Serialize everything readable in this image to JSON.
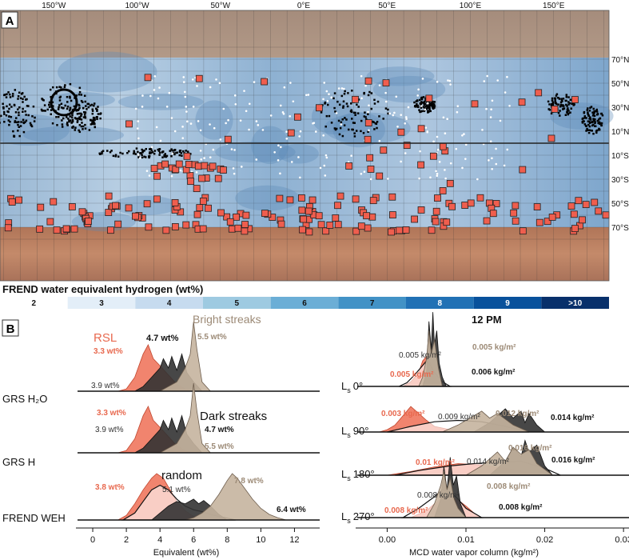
{
  "panel_a": {
    "label": "A",
    "lon_ticks": [
      "150°W",
      "100°W",
      "50°W",
      "0°E",
      "50°E",
      "100°E",
      "150°E"
    ],
    "lat_ticks": [
      "70°N",
      "50°N",
      "30°N",
      "10°N",
      "10°S",
      "30°S",
      "50°S",
      "70°S"
    ],
    "legend": {
      "title": "FREND water equivalent hydrogen (wt%)",
      "classes": [
        "2",
        "3",
        "4",
        "5",
        "6",
        "7",
        "8",
        "9",
        ">10"
      ],
      "colors": [
        "#ffffff",
        "#e3eef8",
        "#c6dbef",
        "#9ecae1",
        "#6baed6",
        "#4292c6",
        "#2171b5",
        "#08519c",
        "#08306b"
      ]
    }
  },
  "panel_b": {
    "label": "B",
    "left": {
      "row_labels": [
        "GRS H₂O",
        "GRS H",
        "FREND WEH"
      ],
      "xlabel": "Equivalent (wt%)",
      "xticks": [
        "0",
        "2",
        "4",
        "6",
        "8",
        "10",
        "12"
      ],
      "series_labels": {
        "rsl": "RSL",
        "bright": "Bright streaks",
        "dark": "Dark streaks",
        "random": "random"
      },
      "annotations": {
        "r1_rsl": "3.3 wt%",
        "r1_dark": "4.7 wt%",
        "r1_bright": "5.5 wt%",
        "r1_random": "3.9 wt%",
        "r2_rsl": "3.3 wt%",
        "r2_random": "3.9 wt%",
        "r2_dark": "4.7 wt%",
        "r2_bright": "5.5 wt%",
        "r3_rsl": "3.8 wt%",
        "r3_random": "5.1 wt%",
        "r3_bright": "7.8 wt%",
        "r3_dark": "6.4 wt%"
      }
    },
    "right": {
      "title": "12 PM",
      "row_labels": [
        "L",
        "L",
        "L",
        "L"
      ],
      "row_subs": [
        "s",
        "s",
        "s",
        "s"
      ],
      "row_values": [
        "0°",
        "90°",
        "180°",
        "270°"
      ],
      "xlabel": "MCD water vapor column (kg/m²)",
      "xticks": [
        "0.00",
        "0.01",
        "0.02",
        "0.03"
      ],
      "annotations": {
        "r1_random": "0.005 kg/m²",
        "r1_bright": "0.005 kg/m²",
        "r1_rsl": "0.005 kg/m²",
        "r1_dark": "0.006 kg/m²",
        "r2_rsl": "0.003 kg/m²",
        "r2_random": "0.009 kg/m²",
        "r2_bright": "0.012 kg/m²",
        "r2_dark": "0.014 kg/m²",
        "r3_bright": "0.016 kg/m²",
        "r3_rsl": "0.01 kg/m²",
        "r3_random": "0.014 kg/m²",
        "r3_dark": "0.016 kg/m²",
        "r4_random": "0.008 kg/m²",
        "r4_bright": "0.008 kg/m²",
        "r4_rsl": "0.008 kg/m²",
        "r4_dark": "0.008 kg/m²"
      }
    },
    "colors": {
      "rsl": "#ef6f55",
      "bright": "#c5b49e",
      "dark": "#333333",
      "random": "#ffffff",
      "rsl_text": "#e8694f",
      "bright_text": "#9c8a76"
    }
  },
  "chart_data": [
    {
      "type": "area",
      "title": "",
      "xlabel": "Equivalent (wt%)",
      "ylabel": "",
      "xlim": [
        -1,
        13.5
      ],
      "rows": [
        {
          "name": "GRS H₂O",
          "series": [
            {
              "name": "RSL",
              "x": [
                1.5,
                2,
                2.5,
                3,
                3.3,
                3.6,
                4,
                4.5,
                5,
                5.5,
                6
              ],
              "y": [
                0,
                0.05,
                0.3,
                0.8,
                1.0,
                0.7,
                0.55,
                0.35,
                0.15,
                0.05,
                0
              ]
            },
            {
              "name": "Dark streaks",
              "x": [
                2.5,
                3,
                3.5,
                4,
                4.2,
                4.5,
                4.7,
                5,
                5.3,
                5.6,
                6,
                6.5
              ],
              "y": [
                0,
                0.1,
                0.3,
                0.5,
                0.7,
                0.5,
                0.75,
                0.45,
                0.8,
                0.4,
                0.2,
                0
              ]
            },
            {
              "name": "Bright streaks",
              "x": [
                4,
                4.5,
                5,
                5.5,
                5.8,
                6,
                6.2,
                6.5,
                7
              ],
              "y": [
                0,
                0.1,
                0.2,
                0.5,
                0.8,
                1.5,
                0.9,
                0.2,
                0
              ]
            }
          ]
        },
        {
          "name": "GRS H",
          "series": [
            {
              "name": "RSL",
              "x": [
                1.5,
                2,
                2.5,
                3,
                3.3,
                3.6,
                4,
                4.5,
                5,
                5.5,
                6
              ],
              "y": [
                0,
                0.05,
                0.3,
                0.8,
                1.0,
                0.7,
                0.55,
                0.35,
                0.15,
                0.05,
                0
              ]
            },
            {
              "name": "Dark streaks",
              "x": [
                2.5,
                3,
                3.5,
                4,
                4.2,
                4.5,
                4.7,
                5,
                5.3,
                5.6,
                6,
                6.5
              ],
              "y": [
                0,
                0.1,
                0.3,
                0.5,
                0.7,
                0.5,
                0.75,
                0.45,
                0.8,
                0.4,
                0.2,
                0
              ]
            },
            {
              "name": "Bright streaks",
              "x": [
                4,
                4.5,
                5,
                5.5,
                5.8,
                6,
                6.2,
                6.5,
                7
              ],
              "y": [
                0,
                0.1,
                0.2,
                0.5,
                0.8,
                1.5,
                0.9,
                0.2,
                0
              ]
            }
          ]
        },
        {
          "name": "FREND WEH",
          "series": [
            {
              "name": "RSL",
              "x": [
                1.5,
                2,
                2.5,
                3,
                3.5,
                3.8,
                4.2,
                4.6,
                5,
                5.5,
                6,
                6.5
              ],
              "y": [
                0,
                0.1,
                0.35,
                0.65,
                0.9,
                1.0,
                0.9,
                0.65,
                0.4,
                0.2,
                0.08,
                0
              ]
            },
            {
              "name": "random",
              "x": [
                1.8,
                2.5,
                3,
                3.5,
                4,
                4.5,
                5,
                5.5,
                6,
                6.5,
                7,
                7.5,
                8,
                8.5
              ],
              "y": [
                0,
                0.15,
                0.4,
                0.65,
                0.75,
                0.65,
                0.45,
                0.3,
                0.22,
                0.18,
                0.12,
                0.08,
                0.04,
                0
              ]
            },
            {
              "name": "Dark streaks",
              "x": [
                3.5,
                4,
                4.5,
                5,
                5.5,
                6,
                6.3,
                6.6,
                7,
                7.5,
                8
              ],
              "y": [
                0,
                0.15,
                0.3,
                0.4,
                0.35,
                0.45,
                0.35,
                0.42,
                0.3,
                0.12,
                0
              ]
            },
            {
              "name": "Bright streaks",
              "x": [
                5.5,
                6,
                6.5,
                7,
                7.5,
                8,
                8.3,
                8.6,
                9,
                9.5,
                10,
                10.5,
                11,
                11.5
              ],
              "y": [
                0,
                0.05,
                0.15,
                0.3,
                0.55,
                0.85,
                1.0,
                0.9,
                0.7,
                0.45,
                0.25,
                0.12,
                0.05,
                0
              ]
            }
          ]
        }
      ]
    },
    {
      "type": "area",
      "title": "12 PM",
      "xlabel": "MCD water vapor column (kg/m²)",
      "ylabel": "",
      "xlim": [
        -0.004,
        0.031
      ],
      "rows": [
        {
          "name": "Ls 0°",
          "series": [
            {
              "name": "RSL",
              "x": [
                0.002,
                0.003,
                0.004,
                0.0045,
                0.005,
                0.0055,
                0.006,
                0.0065,
                0.007
              ],
              "y": [
                0,
                0.1,
                0.3,
                0.55,
                0.65,
                0.5,
                0.25,
                0.08,
                0
              ]
            },
            {
              "name": "random",
              "x": [
                0.0015,
                0.0025,
                0.0035,
                0.0045,
                0.005,
                0.0055,
                0.006,
                0.007,
                0.008
              ],
              "y": [
                0,
                0.08,
                0.25,
                0.45,
                0.55,
                0.45,
                0.3,
                0.1,
                0
              ]
            },
            {
              "name": "Bright streaks",
              "x": [
                0.004,
                0.0045,
                0.005,
                0.0053,
                0.0056,
                0.006,
                0.0065,
                0.007
              ],
              "y": [
                0,
                0.2,
                0.6,
                1.2,
                0.7,
                1.0,
                0.4,
                0
              ]
            },
            {
              "name": "Dark streaks",
              "x": [
                0.0045,
                0.005,
                0.0053,
                0.0056,
                0.0058,
                0.006,
                0.0063,
                0.0066,
                0.007,
                0.0075
              ],
              "y": [
                0,
                0.3,
                1.4,
                0.8,
                1.6,
                0.9,
                1.2,
                0.5,
                0.2,
                0
              ]
            }
          ]
        },
        {
          "name": "Ls 90°",
          "series": [
            {
              "name": "RSL",
              "x": [
                -0.001,
                0,
                0.001,
                0.002,
                0.003,
                0.004,
                0.005,
                0.006,
                0.008,
                0.01
              ],
              "y": [
                0,
                0.05,
                0.15,
                0.35,
                0.55,
                0.4,
                0.25,
                0.12,
                0.05,
                0
              ]
            },
            {
              "name": "random",
              "x": [
                0,
                0.003,
                0.006,
                0.009,
                0.012,
                0.015,
                0.018
              ],
              "y": [
                0,
                0.12,
                0.22,
                0.25,
                0.22,
                0.12,
                0
              ]
            },
            {
              "name": "Bright streaks",
              "x": [
                0.007,
                0.009,
                0.011,
                0.012,
                0.013,
                0.014,
                0.016,
                0.018
              ],
              "y": [
                0,
                0.15,
                0.35,
                0.45,
                0.3,
                0.4,
                0.15,
                0
              ]
            },
            {
              "name": "Dark streaks",
              "x": [
                0.011,
                0.013,
                0.014,
                0.015,
                0.016,
                0.017,
                0.0175,
                0.018,
                0.019,
                0.02
              ],
              "y": [
                0,
                0.2,
                0.35,
                0.5,
                0.3,
                0.45,
                0.2,
                0.4,
                0.15,
                0
              ]
            }
          ]
        },
        {
          "name": "Ls 180°",
          "series": [
            {
              "name": "RSL",
              "x": [
                0,
                0.003,
                0.006,
                0.009,
                0.012,
                0.015,
                0.018,
                0.02
              ],
              "y": [
                0,
                0.08,
                0.18,
                0.25,
                0.22,
                0.15,
                0.06,
                0
              ]
            },
            {
              "name": "random",
              "x": [
                0.001,
                0.004,
                0.008,
                0.011,
                0.014,
                0.017,
                0.02,
                0.022
              ],
              "y": [
                0,
                0.1,
                0.2,
                0.25,
                0.28,
                0.3,
                0.15,
                0
              ]
            },
            {
              "name": "Bright streaks",
              "x": [
                0.01,
                0.012,
                0.014,
                0.015,
                0.016,
                0.017,
                0.018,
                0.019,
                0.021
              ],
              "y": [
                0,
                0.2,
                0.5,
                0.3,
                0.6,
                0.45,
                0.55,
                0.25,
                0
              ]
            },
            {
              "name": "Dark streaks",
              "x": [
                0.013,
                0.015,
                0.016,
                0.017,
                0.0175,
                0.018,
                0.019,
                0.02,
                0.021
              ],
              "y": [
                0,
                0.3,
                0.6,
                0.4,
                0.75,
                0.5,
                0.65,
                0.2,
                0
              ]
            }
          ]
        },
        {
          "name": "Ls 270°",
          "series": [
            {
              "name": "RSL",
              "x": [
                0.003,
                0.005,
                0.006,
                0.007,
                0.008,
                0.009,
                0.01,
                0.011,
                0.012
              ],
              "y": [
                0,
                0.15,
                0.3,
                0.42,
                0.45,
                0.38,
                0.25,
                0.1,
                0
              ]
            },
            {
              "name": "random",
              "x": [
                0.002,
                0.004,
                0.006,
                0.007,
                0.008,
                0.009,
                0.01,
                0.012
              ],
              "y": [
                0,
                0.2,
                0.45,
                0.6,
                0.55,
                0.4,
                0.2,
                0
              ]
            },
            {
              "name": "Bright streaks",
              "x": [
                0.005,
                0.006,
                0.0068,
                0.0072,
                0.0076,
                0.008,
                0.0085,
                0.009,
                0.01
              ],
              "y": [
                0,
                0.3,
                0.7,
                1.0,
                0.6,
                0.85,
                0.4,
                0.2,
                0
              ]
            },
            {
              "name": "Dark streaks",
              "x": [
                0.006,
                0.0068,
                0.0072,
                0.0076,
                0.008,
                0.0084,
                0.0088,
                0.0093,
                0.01
              ],
              "y": [
                0,
                0.4,
                1.1,
                0.6,
                1.3,
                0.7,
                0.9,
                0.3,
                0
              ]
            }
          ]
        }
      ]
    }
  ]
}
